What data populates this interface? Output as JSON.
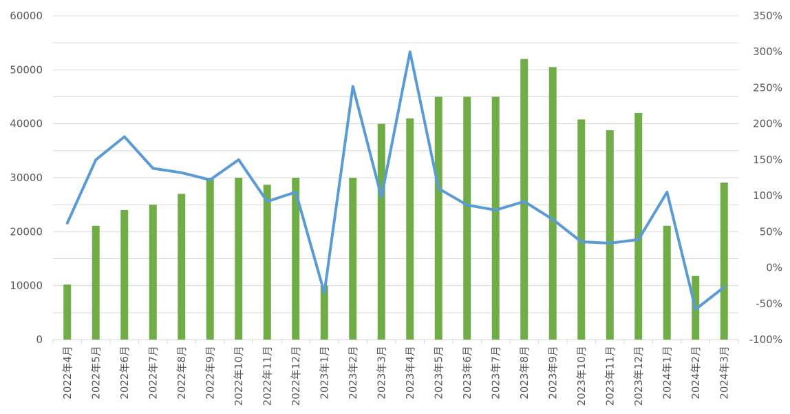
{
  "chart_data": {
    "type": "bar+line",
    "categories": [
      "2022年4月",
      "2022年5月",
      "2022年6月",
      "2022年7月",
      "2022年8月",
      "2022年9月",
      "2022年10月",
      "2022年11月",
      "2022年12月",
      "2023年1月",
      "2023年2月",
      "2023年3月",
      "2023年4月",
      "2023年5月",
      "2023年6月",
      "2023年7月",
      "2023年8月",
      "2023年9月",
      "2023年10月",
      "2023年11月",
      "2023年12月",
      "2024年1月",
      "2024年2月",
      "2024年3月"
    ],
    "series": [
      {
        "type": "bar",
        "axis": "left",
        "color": "#70ad47",
        "values": [
          10200,
          21100,
          24000,
          25000,
          27000,
          30000,
          30000,
          28700,
          30000,
          10000,
          30000,
          40000,
          41000,
          45000,
          45000,
          45000,
          52000,
          50500,
          40800,
          38800,
          42000,
          21100,
          11800,
          29100
        ]
      },
      {
        "type": "line",
        "axis": "right",
        "color": "#5b9bd5",
        "values": [
          62,
          150,
          182,
          138,
          132,
          122,
          150,
          92,
          105,
          -35,
          252,
          98,
          300,
          110,
          87,
          80,
          92,
          67,
          36,
          34,
          39,
          105,
          -58,
          -27
        ]
      }
    ],
    "yaxis_left": {
      "min": 0,
      "max": 60000,
      "step": 10000,
      "ticks": [
        "0",
        "10000",
        "20000",
        "30000",
        "40000",
        "50000",
        "60000"
      ]
    },
    "yaxis_right": {
      "min": -100,
      "max": 350,
      "step": 50,
      "ticks": [
        "-100%",
        "-50%",
        "0%",
        "50%",
        "100%",
        "150%",
        "200%",
        "250%",
        "300%",
        "350%"
      ]
    },
    "grid": true
  }
}
